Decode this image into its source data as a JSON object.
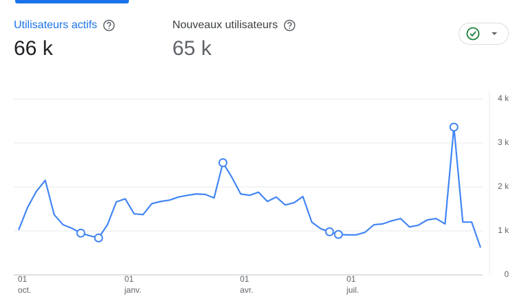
{
  "tabs": [
    {
      "label": "Utilisateurs actifs",
      "value": "66 k"
    },
    {
      "label": "Nouveaux utilisateurs",
      "value": "65 k"
    }
  ],
  "chart_data": {
    "type": "line",
    "categories": [
      null,
      "01\noct.",
      null,
      null,
      null,
      null,
      null,
      null,
      null,
      null,
      null,
      null,
      null,
      "01\njanv.",
      null,
      null,
      null,
      null,
      null,
      null,
      null,
      null,
      null,
      null,
      null,
      null,
      "01\navr.",
      null,
      null,
      null,
      null,
      null,
      null,
      null,
      null,
      null,
      null,
      null,
      "01\njuil.",
      null,
      null,
      null,
      null,
      null,
      null,
      null,
      null,
      null,
      null,
      null,
      null,
      null,
      null
    ],
    "series": [
      {
        "color": "#4285f4",
        "values": [
          1020,
          1530,
          1900,
          2150,
          1370,
          1140,
          1060,
          950,
          890,
          840,
          1140,
          1660,
          1730,
          1390,
          1370,
          1620,
          1670,
          1700,
          1770,
          1810,
          1840,
          1830,
          1750,
          2550,
          2220,
          1840,
          1810,
          1880,
          1670,
          1770,
          1590,
          1640,
          1780,
          1200,
          1050,
          980,
          920,
          910,
          910,
          970,
          1140,
          1160,
          1230,
          1280,
          1090,
          1130,
          1250,
          1280,
          1160,
          3360,
          1200,
          1200,
          620
        ]
      }
    ],
    "markers": [
      7,
      9,
      23,
      35,
      36,
      49
    ],
    "ylim": [
      0,
      4000
    ],
    "yticks": [
      0,
      {
        "value": 1000,
        "label": "1 k"
      },
      {
        "value": 2000,
        "label": "2 k"
      },
      {
        "value": 3000,
        "label": "3 k"
      },
      {
        "value": 4000,
        "label": "4 k"
      }
    ],
    "grid": true,
    "axis_side": "right"
  }
}
